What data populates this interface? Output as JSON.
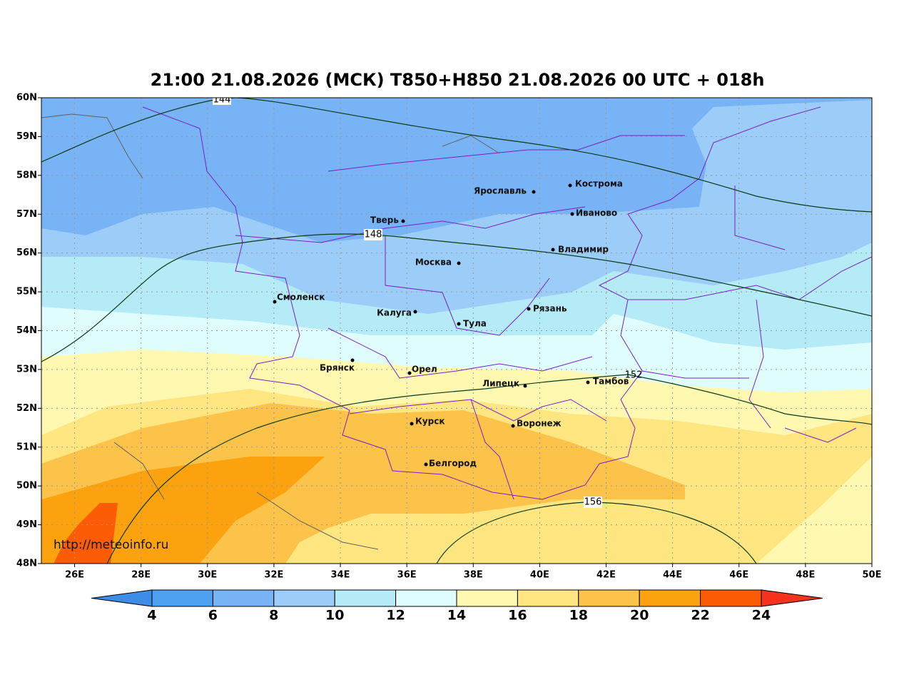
{
  "title": "21:00 21.08.2026 (МСК) T850+H850 21.08.2026 00 UTC + 018h",
  "url": "http://meteoinfo.ru",
  "lat_range": [
    48,
    60
  ],
  "lon_range": [
    25,
    50
  ],
  "lat_ticks": [
    {
      "value": 60,
      "label": "60N"
    },
    {
      "value": 59,
      "label": "59N"
    },
    {
      "value": 58,
      "label": "58N"
    },
    {
      "value": 57,
      "label": "57N"
    },
    {
      "value": 56,
      "label": "56N"
    },
    {
      "value": 55,
      "label": "55N"
    },
    {
      "value": 54,
      "label": "54N"
    },
    {
      "value": 53,
      "label": "53N"
    },
    {
      "value": 52,
      "label": "52N"
    },
    {
      "value": 51,
      "label": "51N"
    },
    {
      "value": 50,
      "label": "50N"
    },
    {
      "value": 49,
      "label": "49N"
    },
    {
      "value": 48,
      "label": "48N"
    }
  ],
  "lon_ticks": [
    {
      "value": 26,
      "label": "26E"
    },
    {
      "value": 28,
      "label": "28E"
    },
    {
      "value": 30,
      "label": "30E"
    },
    {
      "value": 32,
      "label": "32E"
    },
    {
      "value": 34,
      "label": "34E"
    },
    {
      "value": 36,
      "label": "36E"
    },
    {
      "value": 38,
      "label": "38E"
    },
    {
      "value": 40,
      "label": "40E"
    },
    {
      "value": 42,
      "label": "42E"
    },
    {
      "value": 44,
      "label": "44E"
    },
    {
      "value": 46,
      "label": "46E"
    },
    {
      "value": 48,
      "label": "48E"
    },
    {
      "value": 50,
      "label": "50E"
    }
  ],
  "cities": [
    "Кострома",
    "Ярославль",
    "Иваново",
    "Тверь",
    "Владимир",
    "Москва",
    "Смоленск",
    "Рязань",
    "Калуга",
    "Тула",
    "Брянск",
    "Орел",
    "Липецк",
    "Тамбов",
    "Курск",
    "Воронеж",
    "Белгород"
  ],
  "contour_labels": [
    144,
    148,
    152,
    156
  ],
  "colorbar": {
    "ticks": [
      4,
      6,
      8,
      10,
      12,
      14,
      16,
      18,
      20,
      22,
      24
    ],
    "colors": [
      "#3d8de6",
      "#4da0f0",
      "#78b4f5",
      "#9ccdf8",
      "#b5eaf7",
      "#e0fdfd",
      "#fff8b0",
      "#ffe680",
      "#fcc34a",
      "#fca20f",
      "#fd5c07",
      "#f5321e"
    ]
  }
}
